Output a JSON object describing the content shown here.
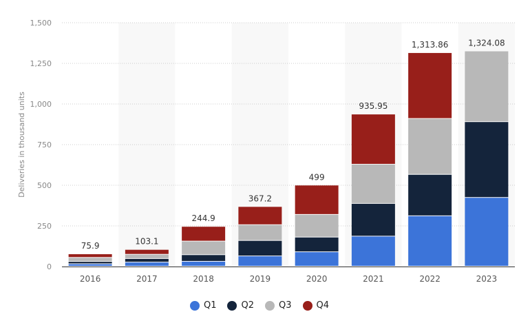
{
  "chart_data": {
    "type": "bar",
    "stacked": true,
    "categories": [
      "2016",
      "2017",
      "2018",
      "2019",
      "2020",
      "2021",
      "2022",
      "2023"
    ],
    "series": [
      {
        "name": "Q1",
        "color": "#3c74d9",
        "values": [
          14.82,
          25.0,
          29.98,
          63.0,
          88.4,
          184.8,
          310.05,
          422.88
        ]
      },
      {
        "name": "Q2",
        "color": "#14243b",
        "values": [
          14.37,
          22.03,
          40.74,
          95.2,
          90.65,
          201.25,
          254.7,
          466.14
        ]
      },
      {
        "name": "Q3",
        "color": "#b8b8b8",
        "values": [
          24.5,
          26.15,
          83.5,
          97.0,
          139.3,
          241.3,
          343.83,
          435.06
        ]
      },
      {
        "name": "Q4",
        "color": "#981f1a",
        "values": [
          22.2,
          29.92,
          90.7,
          112.0,
          180.57,
          308.6,
          405.28,
          0
        ]
      }
    ],
    "totals": [
      "75.9",
      "103.1",
      "244.9",
      "367.2",
      "499",
      "935.95",
      "1,313.86",
      "1,324.08"
    ],
    "ylabel": "Deliveries in thousand units",
    "ylim": [
      0,
      1500
    ],
    "yticks": [
      "0",
      "250",
      "500",
      "750",
      "1,000",
      "1,250",
      "1,500"
    ],
    "grid": true,
    "legend": "bottom"
  }
}
